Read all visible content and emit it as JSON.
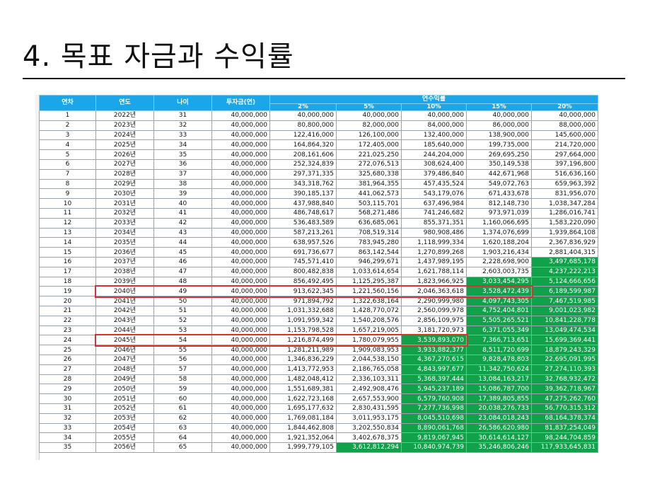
{
  "title": "4. 목표 자금과 수익률",
  "table": {
    "headers": {
      "year_no": "연차",
      "year": "연도",
      "age": "나이",
      "invest": "투자금(연)",
      "returns_group": "연수익률",
      "rates": [
        "2%",
        "5%",
        "10%",
        "15%",
        "20%"
      ]
    },
    "rows": [
      [
        "1",
        "2022년",
        "31",
        "40,000,000",
        "40,000,000",
        "40,000,000",
        "40,000,000",
        "40,000,000",
        "40,000,000"
      ],
      [
        "2",
        "2023년",
        "32",
        "40,000,000",
        "80,800,000",
        "82,000,000",
        "84,000,000",
        "86,000,000",
        "88,000,000"
      ],
      [
        "3",
        "2024년",
        "33",
        "40,000,000",
        "122,416,000",
        "126,100,000",
        "132,400,000",
        "138,900,000",
        "145,600,000"
      ],
      [
        "4",
        "2025년",
        "34",
        "40,000,000",
        "164,864,320",
        "172,405,000",
        "185,640,000",
        "199,735,000",
        "214,720,000"
      ],
      [
        "5",
        "2026년",
        "35",
        "40,000,000",
        "208,161,606",
        "221,025,250",
        "244,204,000",
        "269,695,250",
        "297,664,000"
      ],
      [
        "6",
        "2027년",
        "36",
        "40,000,000",
        "252,324,839",
        "272,076,513",
        "308,624,400",
        "350,149,538",
        "397,196,800"
      ],
      [
        "7",
        "2028년",
        "37",
        "40,000,000",
        "297,371,335",
        "325,680,338",
        "379,486,840",
        "442,671,968",
        "516,636,160"
      ],
      [
        "8",
        "2029년",
        "38",
        "40,000,000",
        "343,318,762",
        "381,964,355",
        "457,435,524",
        "549,072,763",
        "659,963,392"
      ],
      [
        "9",
        "2030년",
        "39",
        "40,000,000",
        "390,185,137",
        "441,062,573",
        "543,179,076",
        "671,433,678",
        "831,956,070"
      ],
      [
        "10",
        "2031년",
        "40",
        "40,000,000",
        "437,988,840",
        "503,115,701",
        "637,496,984",
        "812,148,730",
        "1,038,347,284"
      ],
      [
        "11",
        "2032년",
        "41",
        "40,000,000",
        "486,748,617",
        "568,271,486",
        "741,246,682",
        "973,971,039",
        "1,286,016,741"
      ],
      [
        "12",
        "2033년",
        "42",
        "40,000,000",
        "536,483,589",
        "636,685,061",
        "855,371,351",
        "1,160,066,695",
        "1,583,220,090"
      ],
      [
        "13",
        "2034년",
        "43",
        "40,000,000",
        "587,213,261",
        "708,519,314",
        "980,908,486",
        "1,374,076,699",
        "1,939,864,108"
      ],
      [
        "14",
        "2035년",
        "44",
        "40,000,000",
        "638,957,526",
        "783,945,280",
        "1,118,999,334",
        "1,620,188,204",
        "2,367,836,929"
      ],
      [
        "15",
        "2036년",
        "45",
        "40,000,000",
        "691,736,677",
        "863,142,544",
        "1,270,899,268",
        "1,903,216,434",
        "2,881,404,315"
      ],
      [
        "16",
        "2037년",
        "46",
        "40,000,000",
        "745,571,410",
        "946,299,671",
        "1,437,989,195",
        "2,228,698,900",
        "3,497,685,178"
      ],
      [
        "17",
        "2038년",
        "47",
        "40,000,000",
        "800,482,838",
        "1,033,614,654",
        "1,621,788,114",
        "2,603,003,735",
        "4,237,222,213"
      ],
      [
        "18",
        "2039년",
        "48",
        "40,000,000",
        "856,492,495",
        "1,125,295,387",
        "1,823,966,925",
        "3,033,454,295",
        "5,124,666,656"
      ],
      [
        "19",
        "2040년",
        "49",
        "40,000,000",
        "913,622,345",
        "1,221,560,156",
        "2,046,363,618",
        "3,528,472,439",
        "6,189,599,987"
      ],
      [
        "20",
        "2041년",
        "50",
        "40,000,000",
        "971,894,792",
        "1,322,638,164",
        "2,290,999,980",
        "4,097,743,305",
        "7,467,519,985"
      ],
      [
        "21",
        "2042년",
        "51",
        "40,000,000",
        "1,031,332,688",
        "1,428,770,072",
        "2,560,099,978",
        "4,752,404,801",
        "9,001,023,982"
      ],
      [
        "22",
        "2043년",
        "52",
        "40,000,000",
        "1,091,959,342",
        "1,540,208,576",
        "2,856,109,975",
        "5,505,265,521",
        "10,841,228,778"
      ],
      [
        "23",
        "2044년",
        "53",
        "40,000,000",
        "1,153,798,528",
        "1,657,219,005",
        "3,181,720,973",
        "6,371,055,349",
        "13,049,474,534"
      ],
      [
        "24",
        "2045년",
        "54",
        "40,000,000",
        "1,216,874,499",
        "1,780,079,955",
        "3,539,893,070",
        "7,366,713,651",
        "15,699,369,441"
      ],
      [
        "25",
        "2046년",
        "55",
        "40,000,000",
        "1,281,211,989",
        "1,909,083,953",
        "3,933,882,377",
        "8,511,720,699",
        "18,879,243,329"
      ],
      [
        "26",
        "2047년",
        "56",
        "40,000,000",
        "1,346,836,229",
        "2,044,538,150",
        "4,367,270,615",
        "9,828,478,803",
        "22,695,091,995"
      ],
      [
        "27",
        "2048년",
        "57",
        "40,000,000",
        "1,413,772,953",
        "2,186,765,058",
        "4,843,997,677",
        "11,342,750,624",
        "27,274,110,393"
      ],
      [
        "28",
        "2049년",
        "58",
        "40,000,000",
        "1,482,048,412",
        "2,336,103,311",
        "5,368,397,444",
        "13,084,163,217",
        "32,768,932,472"
      ],
      [
        "29",
        "2050년",
        "59",
        "40,000,000",
        "1,551,689,381",
        "2,492,908,476",
        "5,945,237,189",
        "15,086,787,700",
        "39,362,718,967"
      ],
      [
        "30",
        "2051년",
        "60",
        "40,000,000",
        "1,622,723,168",
        "2,657,553,900",
        "6,579,760,908",
        "17,389,805,855",
        "47,275,262,760"
      ],
      [
        "31",
        "2052년",
        "61",
        "40,000,000",
        "1,695,177,632",
        "2,830,431,595",
        "7,277,736,998",
        "20,038,276,733",
        "56,770,315,312"
      ],
      [
        "32",
        "2053년",
        "62",
        "40,000,000",
        "1,769,081,184",
        "3,011,953,175",
        "8,045,510,698",
        "23,084,018,243",
        "68,164,378,374"
      ],
      [
        "33",
        "2054년",
        "63",
        "40,000,000",
        "1,844,462,808",
        "3,202,550,834",
        "8,890,061,768",
        "26,586,620,980",
        "81,837,254,049"
      ],
      [
        "34",
        "2055년",
        "64",
        "40,000,000",
        "1,921,352,064",
        "3,402,678,375",
        "9,819,067,945",
        "30,614,614,127",
        "98,244,704,859"
      ],
      [
        "35",
        "2056년",
        "65",
        "40,000,000",
        "1,999,779,105",
        "3,612,812,294",
        "10,840,974,739",
        "35,246,806,246",
        "117,933,645,831"
      ]
    ],
    "highlighted_rows": [
      "19",
      "24"
    ],
    "green_color": "#12a14b",
    "header_color": "#1aa6e8",
    "highlight_color": "#d4332f"
  }
}
